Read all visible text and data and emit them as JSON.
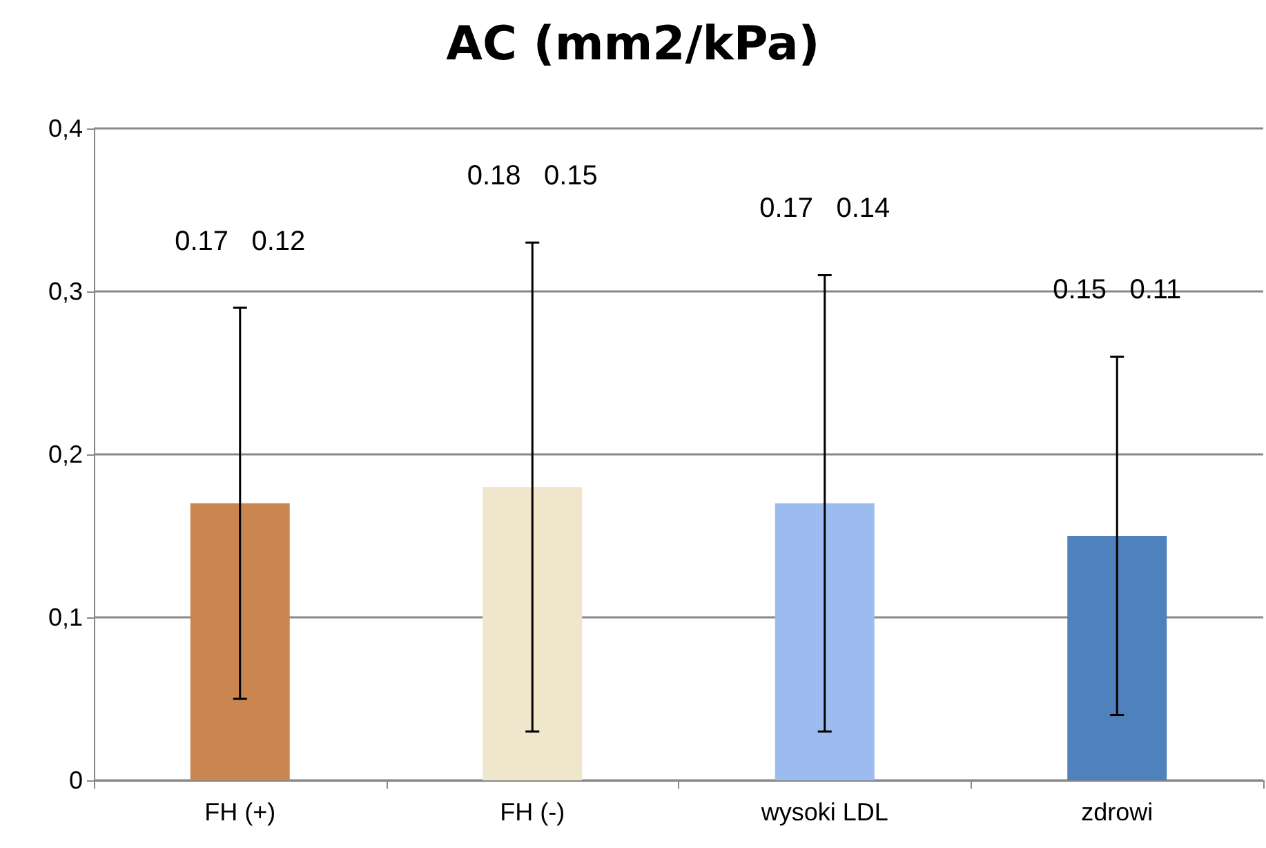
{
  "chart_data": {
    "type": "bar",
    "title": "AC (mm2/kPa)",
    "categories": [
      "FH (+)",
      "FH (-)",
      "wysoki LDL",
      "zdrowi"
    ],
    "values": [
      0.17,
      0.18,
      0.17,
      0.15
    ],
    "errors": [
      0.12,
      0.15,
      0.14,
      0.11
    ],
    "annotations": [
      "0.17   0.12",
      "0.18   0.15",
      "0.17   0.14",
      "0.15   0.11"
    ],
    "colors": [
      "#c98650",
      "#efe6cc",
      "#9cbcf0",
      "#4f81bd"
    ],
    "ylim": [
      0,
      0.4
    ],
    "yticks": [
      {
        "value": 0,
        "label": "0"
      },
      {
        "value": 0.1,
        "label": "0,1"
      },
      {
        "value": 0.2,
        "label": "0,2"
      },
      {
        "value": 0.3,
        "label": "0,3"
      },
      {
        "value": 0.4,
        "label": "0,4"
      }
    ],
    "grid": "y"
  }
}
